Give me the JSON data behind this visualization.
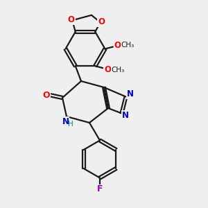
{
  "bg_color": "#efefef",
  "bond_color": "#1a1a1a",
  "o_color": "#ff0000",
  "n_color": "#0000cc",
  "f_color": "#9900cc",
  "nh_color": "#008080",
  "lw": 1.6,
  "fig_size": [
    3.0,
    3.0
  ],
  "dpi": 100,
  "xlim": [
    0,
    10
  ],
  "ylim": [
    0,
    10
  ]
}
